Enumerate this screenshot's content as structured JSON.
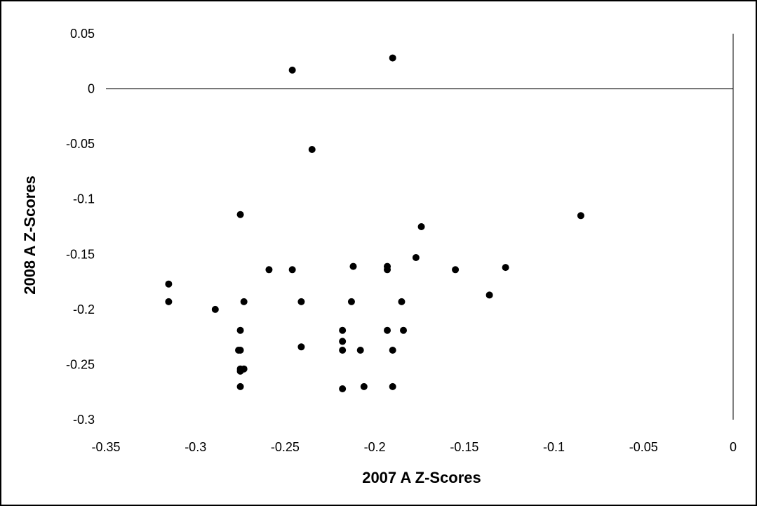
{
  "chart_data": {
    "type": "scatter",
    "title": "",
    "xlabel": "2007 A Z-Scores",
    "ylabel": "2008 A Z-Scores",
    "xlim": [
      -0.35,
      0
    ],
    "ylim": [
      -0.3,
      0.05
    ],
    "x_ticks": [
      -0.35,
      -0.3,
      -0.25,
      -0.2,
      -0.15,
      -0.1,
      -0.05,
      0
    ],
    "y_ticks": [
      0.05,
      0,
      -0.05,
      -0.1,
      -0.15,
      -0.2,
      -0.25,
      -0.3
    ],
    "x_tick_labels": [
      "-0.35",
      "-0.3",
      "-0.25",
      "-0.2",
      "-0.15",
      "-0.1",
      "-0.05",
      "0"
    ],
    "y_tick_labels": [
      "0.05",
      "0",
      "-0.05",
      "-0.1",
      "-0.15",
      "-0.2",
      "-0.25",
      "-0.3"
    ],
    "grid": false,
    "legend": "none",
    "marker_color": "#000000",
    "points": [
      {
        "x": -0.246,
        "y": 0.017
      },
      {
        "x": -0.19,
        "y": 0.028
      },
      {
        "x": -0.235,
        "y": -0.055
      },
      {
        "x": -0.275,
        "y": -0.114
      },
      {
        "x": -0.085,
        "y": -0.115
      },
      {
        "x": -0.174,
        "y": -0.125
      },
      {
        "x": -0.177,
        "y": -0.153
      },
      {
        "x": -0.212,
        "y": -0.161
      },
      {
        "x": -0.193,
        "y": -0.161
      },
      {
        "x": -0.193,
        "y": -0.164
      },
      {
        "x": -0.259,
        "y": -0.164
      },
      {
        "x": -0.246,
        "y": -0.164
      },
      {
        "x": -0.155,
        "y": -0.164
      },
      {
        "x": -0.127,
        "y": -0.162
      },
      {
        "x": -0.315,
        "y": -0.177
      },
      {
        "x": -0.136,
        "y": -0.187
      },
      {
        "x": -0.315,
        "y": -0.193
      },
      {
        "x": -0.273,
        "y": -0.193
      },
      {
        "x": -0.241,
        "y": -0.193
      },
      {
        "x": -0.213,
        "y": -0.193
      },
      {
        "x": -0.185,
        "y": -0.193
      },
      {
        "x": -0.289,
        "y": -0.2
      },
      {
        "x": -0.275,
        "y": -0.219
      },
      {
        "x": -0.218,
        "y": -0.219
      },
      {
        "x": -0.193,
        "y": -0.219
      },
      {
        "x": -0.184,
        "y": -0.219
      },
      {
        "x": -0.218,
        "y": -0.229
      },
      {
        "x": -0.241,
        "y": -0.234
      },
      {
        "x": -0.276,
        "y": -0.237
      },
      {
        "x": -0.275,
        "y": -0.237
      },
      {
        "x": -0.218,
        "y": -0.237
      },
      {
        "x": -0.208,
        "y": -0.237
      },
      {
        "x": -0.19,
        "y": -0.237
      },
      {
        "x": -0.275,
        "y": -0.254
      },
      {
        "x": -0.273,
        "y": -0.254
      },
      {
        "x": -0.275,
        "y": -0.256
      },
      {
        "x": -0.275,
        "y": -0.27
      },
      {
        "x": -0.206,
        "y": -0.27
      },
      {
        "x": -0.19,
        "y": -0.27
      },
      {
        "x": -0.218,
        "y": -0.272
      }
    ]
  }
}
